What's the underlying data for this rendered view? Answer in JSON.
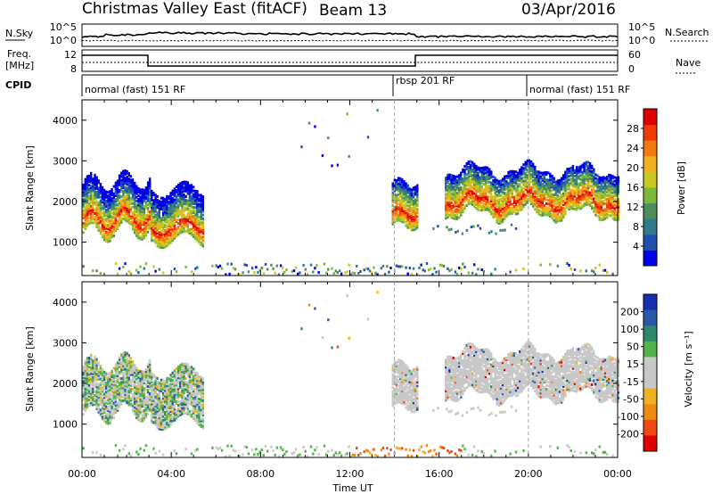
{
  "header": {
    "title": "Christmas Valley East (fitACF)",
    "beam": "Beam 13",
    "date": "03/Apr/2016"
  },
  "strip_labels": {
    "nsky": "N.Sky",
    "nsearch": "N.Search",
    "freq_line1": "Freq.",
    "freq_line2": "[MHz]",
    "nave": "Nave",
    "cpid": "CPID"
  },
  "noise_panel": {
    "left_ticks": [
      "10^5",
      "10^0"
    ],
    "right_ticks": [
      "10^5",
      "10^0"
    ]
  },
  "freq_panel": {
    "left_ticks": [
      "12",
      "8"
    ],
    "right_ticks": [
      "60",
      "0"
    ]
  },
  "cpid_segments": [
    {
      "label": "normal (fast) 151 RF",
      "start": 0,
      "end": 14
    },
    {
      "label": "rbsp 201 RF",
      "start": 14,
      "end": 20
    },
    {
      "label": "normal (fast) 151 RF",
      "start": 20,
      "end": 24
    }
  ],
  "chart_data": [
    {
      "type": "heatmap",
      "name": "power-panel",
      "xlabel": "",
      "ylabel": "Slant Range [km]",
      "xlim": [
        0,
        24
      ],
      "ylim": [
        180,
        4500
      ],
      "yticks": [
        1000,
        2000,
        3000,
        4000
      ],
      "colorbar": {
        "label": "Power [dB]",
        "ticks": [
          "4",
          "8",
          "12",
          "16",
          "20",
          "24",
          "28"
        ],
        "colors": [
          "#0000e8",
          "#1f4fb0",
          "#2f7a8c",
          "#4c8d5a",
          "#7cb83a",
          "#c8c81e",
          "#f0b020",
          "#f07a10",
          "#f03a08",
          "#e00000"
        ]
      }
    },
    {
      "type": "heatmap",
      "name": "velocity-panel",
      "xlabel": "Time UT",
      "ylabel": "Slant Range [km]",
      "xlim": [
        0,
        24
      ],
      "ylim": [
        180,
        4500
      ],
      "yticks": [
        1000,
        2000,
        3000,
        4000
      ],
      "xticks": [
        "00:00",
        "04:00",
        "08:00",
        "12:00",
        "16:00",
        "20:00",
        "00:00"
      ],
      "colorbar": {
        "label": "Velocity [m s⁻¹]",
        "ticks": [
          "200",
          "100",
          "50",
          "15",
          "-15",
          "-50",
          "-100",
          "-200"
        ],
        "colors": [
          "#1830b0",
          "#2a58a8",
          "#2c8a6a",
          "#52b448",
          "#c8c8c8",
          "#c8c8c8",
          "#f0b020",
          "#f08a10",
          "#f04a10",
          "#e00000"
        ]
      }
    }
  ]
}
